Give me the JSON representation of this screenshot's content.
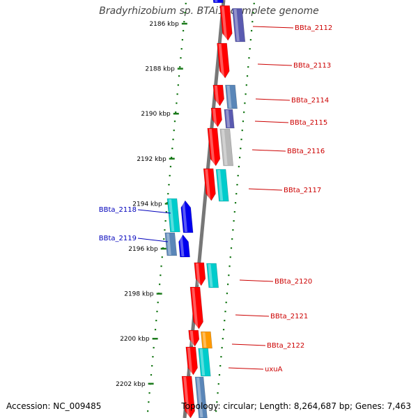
{
  "title": "Bradyrhizobium sp. BTAi1, complete genome",
  "accession": "Accession: NC_009485",
  "topology": "Topology: circular; Length: 8,264,687 bp; Genes: 7,463",
  "colors": {
    "backbone": "#777777",
    "tick": "#1a7a1a",
    "forward_label": "#cc0000",
    "reverse_label": "#0000bb",
    "red_gene": "#ff0000",
    "cyan_gene": "#00cccc",
    "blue_gene": "#0000ee",
    "purple_gene": "#5a5ab0",
    "gray_gene": "#b8b8b8",
    "steel_gene": "#5a86b8",
    "orange_gene": "#ff9900"
  },
  "ticks": [
    {
      "kbp": 2186,
      "label": "2186 kbp"
    },
    {
      "kbp": 2188,
      "label": "2188 kbp"
    },
    {
      "kbp": 2190,
      "label": "2190 kbp"
    },
    {
      "kbp": 2192,
      "label": "2192 kbp"
    },
    {
      "kbp": 2194,
      "label": "2194 kbp"
    },
    {
      "kbp": 2196,
      "label": "2196 kbp"
    },
    {
      "kbp": 2198,
      "label": "2198 kbp"
    },
    {
      "kbp": 2200,
      "label": "2200 kbp"
    },
    {
      "kbp": 2202,
      "label": "2202 kbp"
    }
  ],
  "gene_labels": [
    {
      "text": "BBta_2112",
      "strand": "forward"
    },
    {
      "text": "BBta_2113",
      "strand": "forward"
    },
    {
      "text": "BBta_2114",
      "strand": "forward"
    },
    {
      "text": "BBta_2115",
      "strand": "forward"
    },
    {
      "text": "BBta_2116",
      "strand": "forward"
    },
    {
      "text": "BBta_2117",
      "strand": "forward"
    },
    {
      "text": "BBta_2118",
      "strand": "reverse"
    },
    {
      "text": "BBta_2119",
      "strand": "reverse"
    },
    {
      "text": "BBta_2120",
      "strand": "forward"
    },
    {
      "text": "BBta_2121",
      "strand": "forward"
    },
    {
      "text": "BBta_2122",
      "strand": "forward"
    },
    {
      "text": "uxuA",
      "strand": "forward"
    }
  ]
}
